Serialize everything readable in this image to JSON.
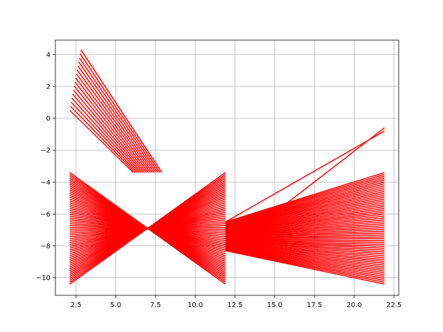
{
  "chart_data": {
    "type": "line",
    "title": "",
    "xlabel": "",
    "ylabel": "",
    "xlim": [
      1.2,
      22.8
    ],
    "ylim": [
      -11.1,
      4.9
    ],
    "grid": true,
    "legend": "none",
    "line_color": "#ff0000",
    "xticks": [
      2.5,
      5.0,
      7.5,
      10.0,
      12.5,
      15.0,
      17.5,
      20.0,
      22.5
    ],
    "xtick_labels": [
      "2.5",
      "5.0",
      "7.5",
      "10.0",
      "12.5",
      "15.0",
      "17.5",
      "20.0",
      "22.5"
    ],
    "yticks": [
      -10,
      -8,
      -6,
      -4,
      -2,
      0,
      2,
      4
    ],
    "ytick_labels": [
      "−10",
      "−8",
      "−6",
      "−4",
      "−2",
      "0",
      "2",
      "4"
    ],
    "series_groups": {
      "upper_left_fan": {
        "count": 16,
        "start": {
          "x": [
            2.1,
            2.8
          ],
          "y": [
            0.5,
            4.3
          ]
        },
        "end": {
          "x": [
            6.1,
            7.9
          ],
          "y": [
            -3.4,
            -3.4
          ]
        }
      },
      "left_block_diagonals": {
        "count": 60,
        "start_x": 2.1,
        "end_x": 11.9,
        "y_range": [
          -10.4,
          -3.4
        ]
      },
      "right_block_diagonals": {
        "count": 60,
        "start_x": 11.9,
        "end_x": 21.9,
        "y_range": [
          -10.4,
          -3.4
        ],
        "neck_y": [
          -8.3,
          -6.5
        ]
      },
      "right_fan": {
        "count": 2,
        "start": {
          "x": 11.9,
          "y": [
            -8.3,
            -6.5
          ]
        },
        "end": {
          "x": 21.9,
          "y": [
            -0.6,
            -0.8
          ]
        }
      }
    }
  }
}
